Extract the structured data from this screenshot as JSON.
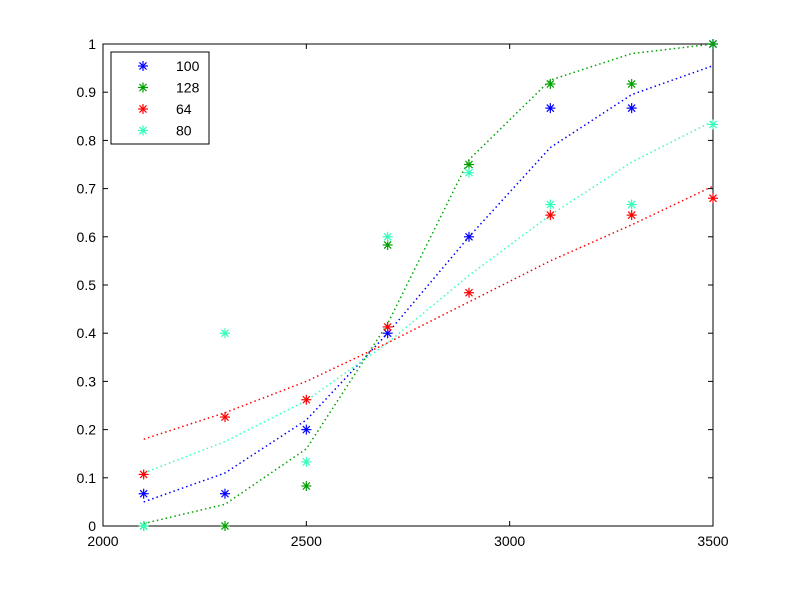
{
  "chart_data": {
    "type": "scatter",
    "title": "",
    "xlabel": "",
    "ylabel": "",
    "xlim": [
      2000,
      3500
    ],
    "ylim": [
      0,
      1
    ],
    "x_ticks": [
      "2000",
      "2500",
      "3000",
      "3500"
    ],
    "y_ticks": [
      "0",
      "0.1",
      "0.2",
      "0.3",
      "0.4",
      "0.5",
      "0.6",
      "0.7",
      "0.8",
      "0.9",
      "1"
    ],
    "grid": false,
    "legend_position": "top-left",
    "x": [
      2100,
      2300,
      2500,
      2700,
      2900,
      3100,
      3300,
      3500
    ],
    "series": [
      {
        "name": "100",
        "color": "#0000ff",
        "marker": "asterisk",
        "points": [
          0.067,
          0.067,
          0.2,
          0.4,
          0.6,
          0.867,
          0.867,
          1.0
        ],
        "fit": [
          0.05,
          0.11,
          0.22,
          0.4,
          0.6,
          0.785,
          0.895,
          0.955
        ]
      },
      {
        "name": "128",
        "color": "#00a000",
        "marker": "asterisk",
        "points": [
          0.0,
          0.0,
          0.083,
          0.583,
          0.75,
          0.917,
          0.917,
          1.0
        ],
        "fit": [
          0.005,
          0.045,
          0.16,
          0.42,
          0.76,
          0.925,
          0.98,
          1.0
        ]
      },
      {
        "name": "64",
        "color": "#ff0000",
        "marker": "asterisk",
        "points": [
          0.107,
          0.226,
          0.262,
          0.413,
          0.484,
          0.645,
          0.645,
          0.68
        ],
        "fit": [
          0.18,
          0.235,
          0.3,
          0.38,
          0.465,
          0.55,
          0.625,
          0.705
        ]
      },
      {
        "name": "80",
        "color": "#33ffbb",
        "marker": "asterisk",
        "points": [
          0.0,
          0.4,
          0.133,
          0.6,
          0.733,
          0.667,
          0.667,
          0.833
        ],
        "fit": [
          0.11,
          0.175,
          0.26,
          0.38,
          0.52,
          0.645,
          0.755,
          0.84
        ]
      }
    ]
  }
}
